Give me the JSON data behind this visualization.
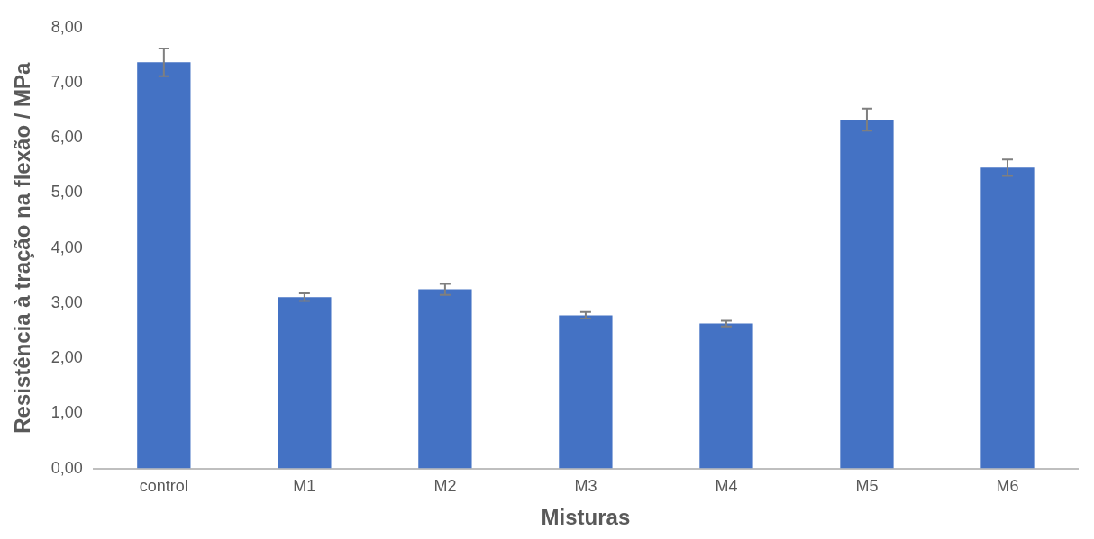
{
  "chart_data": {
    "type": "bar",
    "xlabel": "Misturas",
    "ylabel": "Resistência à tração na flexão / MPa",
    "categories": [
      "control",
      "M1",
      "M2",
      "M3",
      "M4",
      "M5",
      "M6"
    ],
    "values": [
      7.37,
      3.11,
      3.25,
      2.78,
      2.63,
      6.33,
      5.46
    ],
    "errors": [
      0.25,
      0.07,
      0.1,
      0.06,
      0.05,
      0.2,
      0.15
    ],
    "color": "#4472c4",
    "ylim": [
      0,
      8
    ],
    "yticks": [
      {
        "value": 0,
        "label": "0,00"
      },
      {
        "value": 1,
        "label": "1,00"
      },
      {
        "value": 2,
        "label": "2,00"
      },
      {
        "value": 3,
        "label": "3,00"
      },
      {
        "value": 4,
        "label": "4,00"
      },
      {
        "value": 5,
        "label": "5,00"
      },
      {
        "value": 6,
        "label": "6,00"
      },
      {
        "value": 7,
        "label": "7,00"
      },
      {
        "value": 8,
        "label": "8,00"
      }
    ],
    "grid": false,
    "legend": false
  }
}
